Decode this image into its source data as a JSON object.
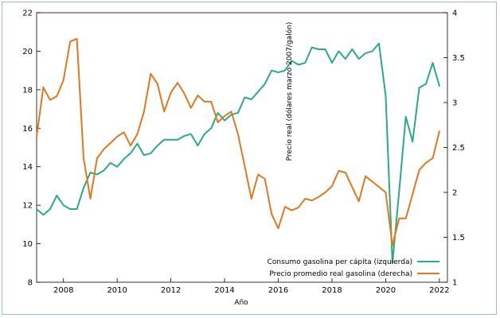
{
  "chart_data": {
    "type": "line",
    "xlabel": "Año",
    "ylabel_right": "Precio real (dólares marzo 2007/galón)",
    "xlim": [
      2007,
      2022.3
    ],
    "ylim_left": [
      8,
      22
    ],
    "ylim_right": [
      1,
      4
    ],
    "x_ticks": [
      "2008",
      "2010",
      "2012",
      "2014",
      "2016",
      "2018",
      "2020",
      "2022"
    ],
    "y_ticks_left": [
      "8",
      "10",
      "12",
      "14",
      "16",
      "18",
      "20",
      "22"
    ],
    "y_ticks_right": [
      "1",
      "1.5",
      "2",
      "2.5",
      "3",
      "3.5",
      "4"
    ],
    "grid": false,
    "legend_position": "bottom-right",
    "series": [
      {
        "name": "Consumo gasolina per cápita (izquierda)",
        "axis": "left",
        "color": "#2aab83",
        "x": [
          2007.0,
          2007.25,
          2007.5,
          2007.75,
          2008.0,
          2008.25,
          2008.5,
          2008.75,
          2009.0,
          2009.25,
          2009.5,
          2009.75,
          2010.0,
          2010.25,
          2010.5,
          2010.75,
          2011.0,
          2011.25,
          2011.5,
          2011.75,
          2012.0,
          2012.25,
          2012.5,
          2012.75,
          2013.0,
          2013.25,
          2013.5,
          2013.75,
          2014.0,
          2014.25,
          2014.5,
          2014.75,
          2015.0,
          2015.25,
          2015.5,
          2015.75,
          2016.0,
          2016.25,
          2016.5,
          2016.75,
          2017.0,
          2017.25,
          2017.5,
          2017.75,
          2018.0,
          2018.25,
          2018.5,
          2018.75,
          2019.0,
          2019.25,
          2019.5,
          2019.75,
          2020.0,
          2020.25,
          2020.5,
          2020.75,
          2021.0,
          2021.25,
          2021.5,
          2021.75,
          2022.0
        ],
        "values": [
          11.8,
          11.5,
          11.8,
          12.5,
          12.0,
          11.8,
          11.8,
          12.9,
          13.7,
          13.6,
          13.8,
          14.2,
          14.0,
          14.4,
          14.7,
          15.2,
          14.6,
          14.7,
          15.1,
          15.4,
          15.4,
          15.4,
          15.6,
          15.7,
          15.1,
          15.7,
          16.0,
          16.8,
          16.4,
          16.7,
          16.8,
          17.6,
          17.5,
          17.9,
          18.3,
          19.0,
          18.9,
          19.0,
          19.5,
          19.3,
          19.4,
          20.2,
          20.1,
          20.1,
          19.4,
          20.0,
          19.6,
          20.1,
          19.6,
          19.9,
          20.0,
          20.4,
          17.7,
          9.0,
          12.7,
          16.6,
          15.3,
          18.1,
          18.3,
          19.4,
          18.2
        ]
      },
      {
        "name": "Precio promedio real gasolina (derecha)",
        "axis": "right",
        "color": "#e07820",
        "x": [
          2007.0,
          2007.25,
          2007.5,
          2007.75,
          2008.0,
          2008.25,
          2008.5,
          2008.75,
          2009.0,
          2009.25,
          2009.5,
          2009.75,
          2010.0,
          2010.25,
          2010.5,
          2010.75,
          2011.0,
          2011.25,
          2011.5,
          2011.75,
          2012.0,
          2012.25,
          2012.5,
          2012.75,
          2013.0,
          2013.25,
          2013.5,
          2013.75,
          2014.0,
          2014.25,
          2014.5,
          2014.75,
          2015.0,
          2015.25,
          2015.5,
          2015.75,
          2016.0,
          2016.25,
          2016.5,
          2016.75,
          2017.0,
          2017.25,
          2017.5,
          2017.75,
          2018.0,
          2018.25,
          2018.5,
          2018.75,
          2019.0,
          2019.25,
          2019.5,
          2019.75,
          2020.0,
          2020.25,
          2020.5,
          2020.75,
          2021.0,
          2021.25,
          2021.5,
          2021.75,
          2022.0
        ],
        "values": [
          2.62,
          3.17,
          3.03,
          3.07,
          3.25,
          3.68,
          3.71,
          2.38,
          1.93,
          2.38,
          2.48,
          2.55,
          2.62,
          2.67,
          2.52,
          2.65,
          2.9,
          3.32,
          3.21,
          2.9,
          3.11,
          3.22,
          3.1,
          2.94,
          3.08,
          3.01,
          3.01,
          2.78,
          2.85,
          2.9,
          2.65,
          2.29,
          1.93,
          2.2,
          2.15,
          1.76,
          1.6,
          1.84,
          1.8,
          1.83,
          1.93,
          1.91,
          1.95,
          2.0,
          2.07,
          2.24,
          2.22,
          2.06,
          1.9,
          2.18,
          2.12,
          2.06,
          2.0,
          1.41,
          1.71,
          1.71,
          1.98,
          2.25,
          2.33,
          2.38,
          2.68
        ]
      }
    ]
  }
}
